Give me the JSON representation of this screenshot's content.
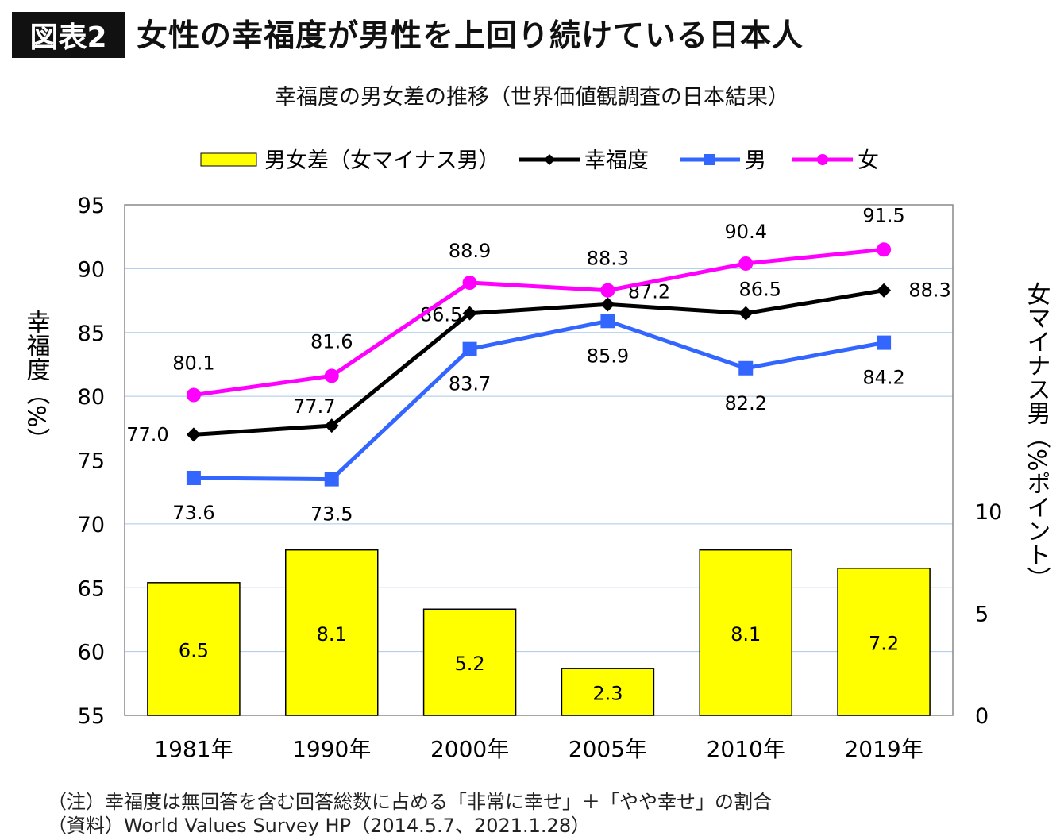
{
  "header": {
    "badge": "図表2",
    "title": "女性の幸福度が男性を上回り続けている日本人"
  },
  "chart_data": {
    "type": "bar+line",
    "title": "幸福度の男女差の推移（世界価値観調査の日本結果）",
    "categories": [
      "1981年",
      "1990年",
      "2000年",
      "2005年",
      "2010年",
      "2019年"
    ],
    "series": [
      {
        "name": "男女差（女マイナス男）",
        "type": "bar",
        "axis": "right",
        "color": "#FFFF00",
        "values": [
          6.5,
          8.1,
          5.2,
          2.3,
          8.1,
          7.2
        ],
        "labels": [
          "6.5",
          "8.1",
          "5.2",
          "2.3",
          "8.1",
          "7.2"
        ]
      },
      {
        "name": "幸福度",
        "type": "line",
        "marker": "diamond",
        "axis": "left",
        "color": "#000000",
        "values": [
          77.0,
          77.7,
          86.5,
          87.2,
          86.5,
          88.3
        ],
        "labels": [
          "77.0",
          "77.7",
          "86.5",
          "87.2",
          "86.5",
          "88.3"
        ]
      },
      {
        "name": "男",
        "type": "line",
        "marker": "square",
        "axis": "left",
        "color": "#3366FF",
        "values": [
          73.6,
          73.5,
          83.7,
          85.9,
          82.2,
          84.2
        ],
        "labels": [
          "73.6",
          "73.5",
          "83.7",
          "85.9",
          "82.2",
          "84.2"
        ]
      },
      {
        "name": "女",
        "type": "line",
        "marker": "circle",
        "axis": "left",
        "color": "#FF00FF",
        "values": [
          80.1,
          81.6,
          88.9,
          88.3,
          90.4,
          91.5
        ],
        "labels": [
          "80.1",
          "81.6",
          "88.9",
          "88.3",
          "90.4",
          "91.5"
        ]
      }
    ],
    "ylabel": "幸福度（%）",
    "ylim": [
      55,
      95
    ],
    "yticks": [
      "55",
      "60",
      "65",
      "70",
      "75",
      "80",
      "85",
      "90",
      "95"
    ],
    "y2label": "女マイナス男（%ポイント）",
    "y2lim": [
      0,
      25
    ],
    "y2ticks": [
      "0",
      "5",
      "10"
    ],
    "grid": true,
    "legend": "top"
  },
  "notes": [
    "（注）幸福度は無回答を含む回答総数に占める「非常に幸せ」＋「やや幸せ」の割合",
    "（資料）World Values Survey HP（2014.5.7、2021.1.28）"
  ]
}
